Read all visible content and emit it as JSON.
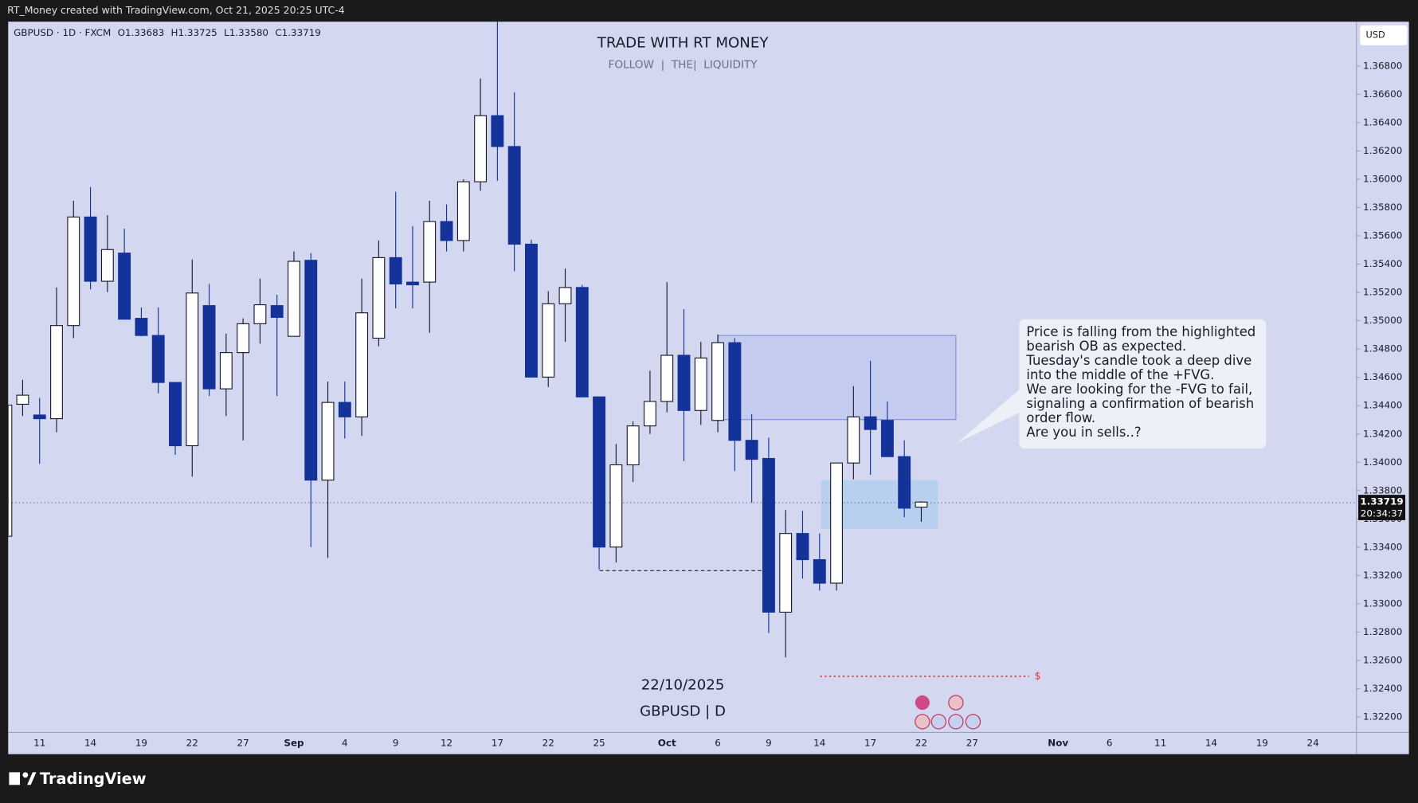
{
  "header": {
    "credit": "RT_Money created with TradingView.com, Oct 21, 2025 20:25 UTC-4",
    "symbol": "GBPUSD · 1D · FXCM",
    "ohlc": [
      "O1.33683",
      "H1.33725",
      "L1.33580",
      "C1.33719"
    ]
  },
  "footer": {
    "brand": "TradingView"
  },
  "chart_data": {
    "type": "candlestick",
    "title": "TRADE WITH RT MONEY",
    "subtitle": "FOLLOW  |  THE|  LIQUIDITY",
    "currency": "USD",
    "countdown": "20:34:37",
    "date_label": "22/10/2025",
    "pair_label": "GBPUSD | D",
    "liquidity_marker": "$",
    "note": [
      "Price is falling from the highlighted",
      "bearish OB as expected.",
      "Tuesday's candle took a deep dive",
      "into the middle of the +FVG.",
      "We are looking for the -FVG to fail,",
      "signaling a confirmation of bearish",
      "order flow.",
      "Are you in sells..?"
    ],
    "x_labels": [
      "11",
      "14",
      "19",
      "22",
      "27",
      "Sep",
      "4",
      "9",
      "12",
      "17",
      "22",
      "25",
      "Oct",
      "6",
      "9",
      "14",
      "17",
      "22",
      "27",
      "Nov",
      "6",
      "11",
      "14",
      "19",
      "24"
    ],
    "up_color": "#ffffff",
    "down_color": "#13329a",
    "open": [
      1.3441,
      1.34334,
      1.34308,
      1.34966,
      1.35733,
      1.35279,
      1.35478,
      1.35017,
      1.34896,
      1.34564,
      1.34117,
      1.35107,
      1.34519,
      1.34775,
      1.34979,
      1.35107,
      1.3489,
      1.35427,
      1.33874,
      1.34423,
      1.34321,
      1.34877,
      1.35446,
      1.35273,
      1.35273,
      1.35701,
      1.35567,
      1.35982,
      1.36449,
      1.36231,
      1.35541,
      1.34602,
      1.3512,
      1.35235,
      1.34462,
      1.33401,
      1.33982,
      1.34257,
      1.3443,
      1.34756,
      1.34366,
      1.34296,
      1.34845,
      1.34155,
      1.34027,
      1.32941,
      1.33497,
      1.33312,
      1.33146,
      1.33995,
      1.34321,
      1.34296,
      1.3404,
      1.33683
    ],
    "high": [
      1.34583,
      1.34455,
      1.35235,
      1.35848,
      1.35944,
      1.35746,
      1.3565,
      1.35094,
      1.35094,
      1.34564,
      1.35433,
      1.3526,
      1.34909,
      1.35017,
      1.35298,
      1.35184,
      1.3549,
      1.35478,
      1.3457,
      1.3457,
      1.35298,
      1.35567,
      1.35912,
      1.35669,
      1.35848,
      1.35822,
      1.36,
      1.36711,
      1.37113,
      1.36615,
      1.35573,
      1.35209,
      1.35369,
      1.35254,
      1.34462,
      1.34129,
      1.34289,
      1.34647,
      1.35273,
      1.35082,
      1.34851,
      1.34903,
      1.34877,
      1.3434,
      1.34174,
      1.33663,
      1.33657,
      1.33497,
      1.33995,
      1.34538,
      1.34717,
      1.3443,
      1.34155,
      1.33725
    ],
    "low": [
      1.34327,
      1.33989,
      1.34212,
      1.34877,
      1.35222,
      1.35203,
      1.35011,
      1.3489,
      1.34487,
      1.34053,
      1.33899,
      1.34468,
      1.34327,
      1.34155,
      1.34838,
      1.34468,
      1.3489,
      1.33401,
      1.33324,
      1.34168,
      1.34187,
      1.34819,
      1.35088,
      1.35088,
      1.34915,
      1.3549,
      1.3549,
      1.35918,
      1.35989,
      1.3535,
      1.34602,
      1.34532,
      1.34851,
      1.34462,
      1.33241,
      1.33292,
      1.33861,
      1.342,
      1.34353,
      1.34008,
      1.34264,
      1.34212,
      1.33938,
      1.33714,
      1.32794,
      1.32622,
      1.33178,
      1.33094,
      1.33094,
      1.3388,
      1.33912,
      1.3404,
      1.33612,
      1.3358
    ],
    "close": [
      1.34474,
      1.34308,
      1.34966,
      1.35733,
      1.35279,
      1.35503,
      1.35011,
      1.34896,
      1.34564,
      1.34117,
      1.35196,
      1.34519,
      1.34775,
      1.34979,
      1.35113,
      1.35024,
      1.3542,
      1.33874,
      1.34423,
      1.34321,
      1.35056,
      1.35446,
      1.3526,
      1.35254,
      1.35701,
      1.35567,
      1.35982,
      1.36449,
      1.36231,
      1.35541,
      1.34602,
      1.3512,
      1.35235,
      1.34462,
      1.33401,
      1.33982,
      1.34257,
      1.3443,
      1.34756,
      1.34366,
      1.34737,
      1.34845,
      1.34155,
      1.34021,
      1.32941,
      1.33497,
      1.33312,
      1.33146,
      1.33995,
      1.34321,
      1.34232,
      1.3404,
      1.33676,
      1.33719
    ],
    "ylim": [
      1.32091,
      1.37113
    ],
    "yticks": [
      {
        "value": 1.322,
        "label": "1.32200"
      },
      {
        "value": 1.324,
        "label": "1.32400"
      },
      {
        "value": 1.326,
        "label": "1.32600"
      },
      {
        "value": 1.328,
        "label": "1.32800"
      },
      {
        "value": 1.33,
        "label": "1.33000"
      },
      {
        "value": 1.332,
        "label": "1.33200"
      },
      {
        "value": 1.334,
        "label": "1.33400"
      },
      {
        "value": 1.336,
        "label": "1.33600"
      },
      {
        "value": 1.338,
        "label": "1.33800"
      },
      {
        "value": 1.34,
        "label": "1.34000"
      },
      {
        "value": 1.342,
        "label": "1.34200"
      },
      {
        "value": 1.344,
        "label": "1.34400"
      },
      {
        "value": 1.346,
        "label": "1.34600"
      },
      {
        "value": 1.348,
        "label": "1.34800"
      },
      {
        "value": 1.35,
        "label": "1.35000"
      },
      {
        "value": 1.352,
        "label": "1.35200"
      },
      {
        "value": 1.354,
        "label": "1.35400"
      },
      {
        "value": 1.356,
        "label": "1.35600"
      },
      {
        "value": 1.358,
        "label": "1.35800"
      },
      {
        "value": 1.36,
        "label": "1.36000"
      },
      {
        "value": 1.362,
        "label": "1.36200"
      },
      {
        "value": 1.364,
        "label": "1.36400"
      },
      {
        "value": 1.366,
        "label": "1.36600"
      },
      {
        "value": 1.368,
        "label": "1.36800"
      }
    ]
  }
}
